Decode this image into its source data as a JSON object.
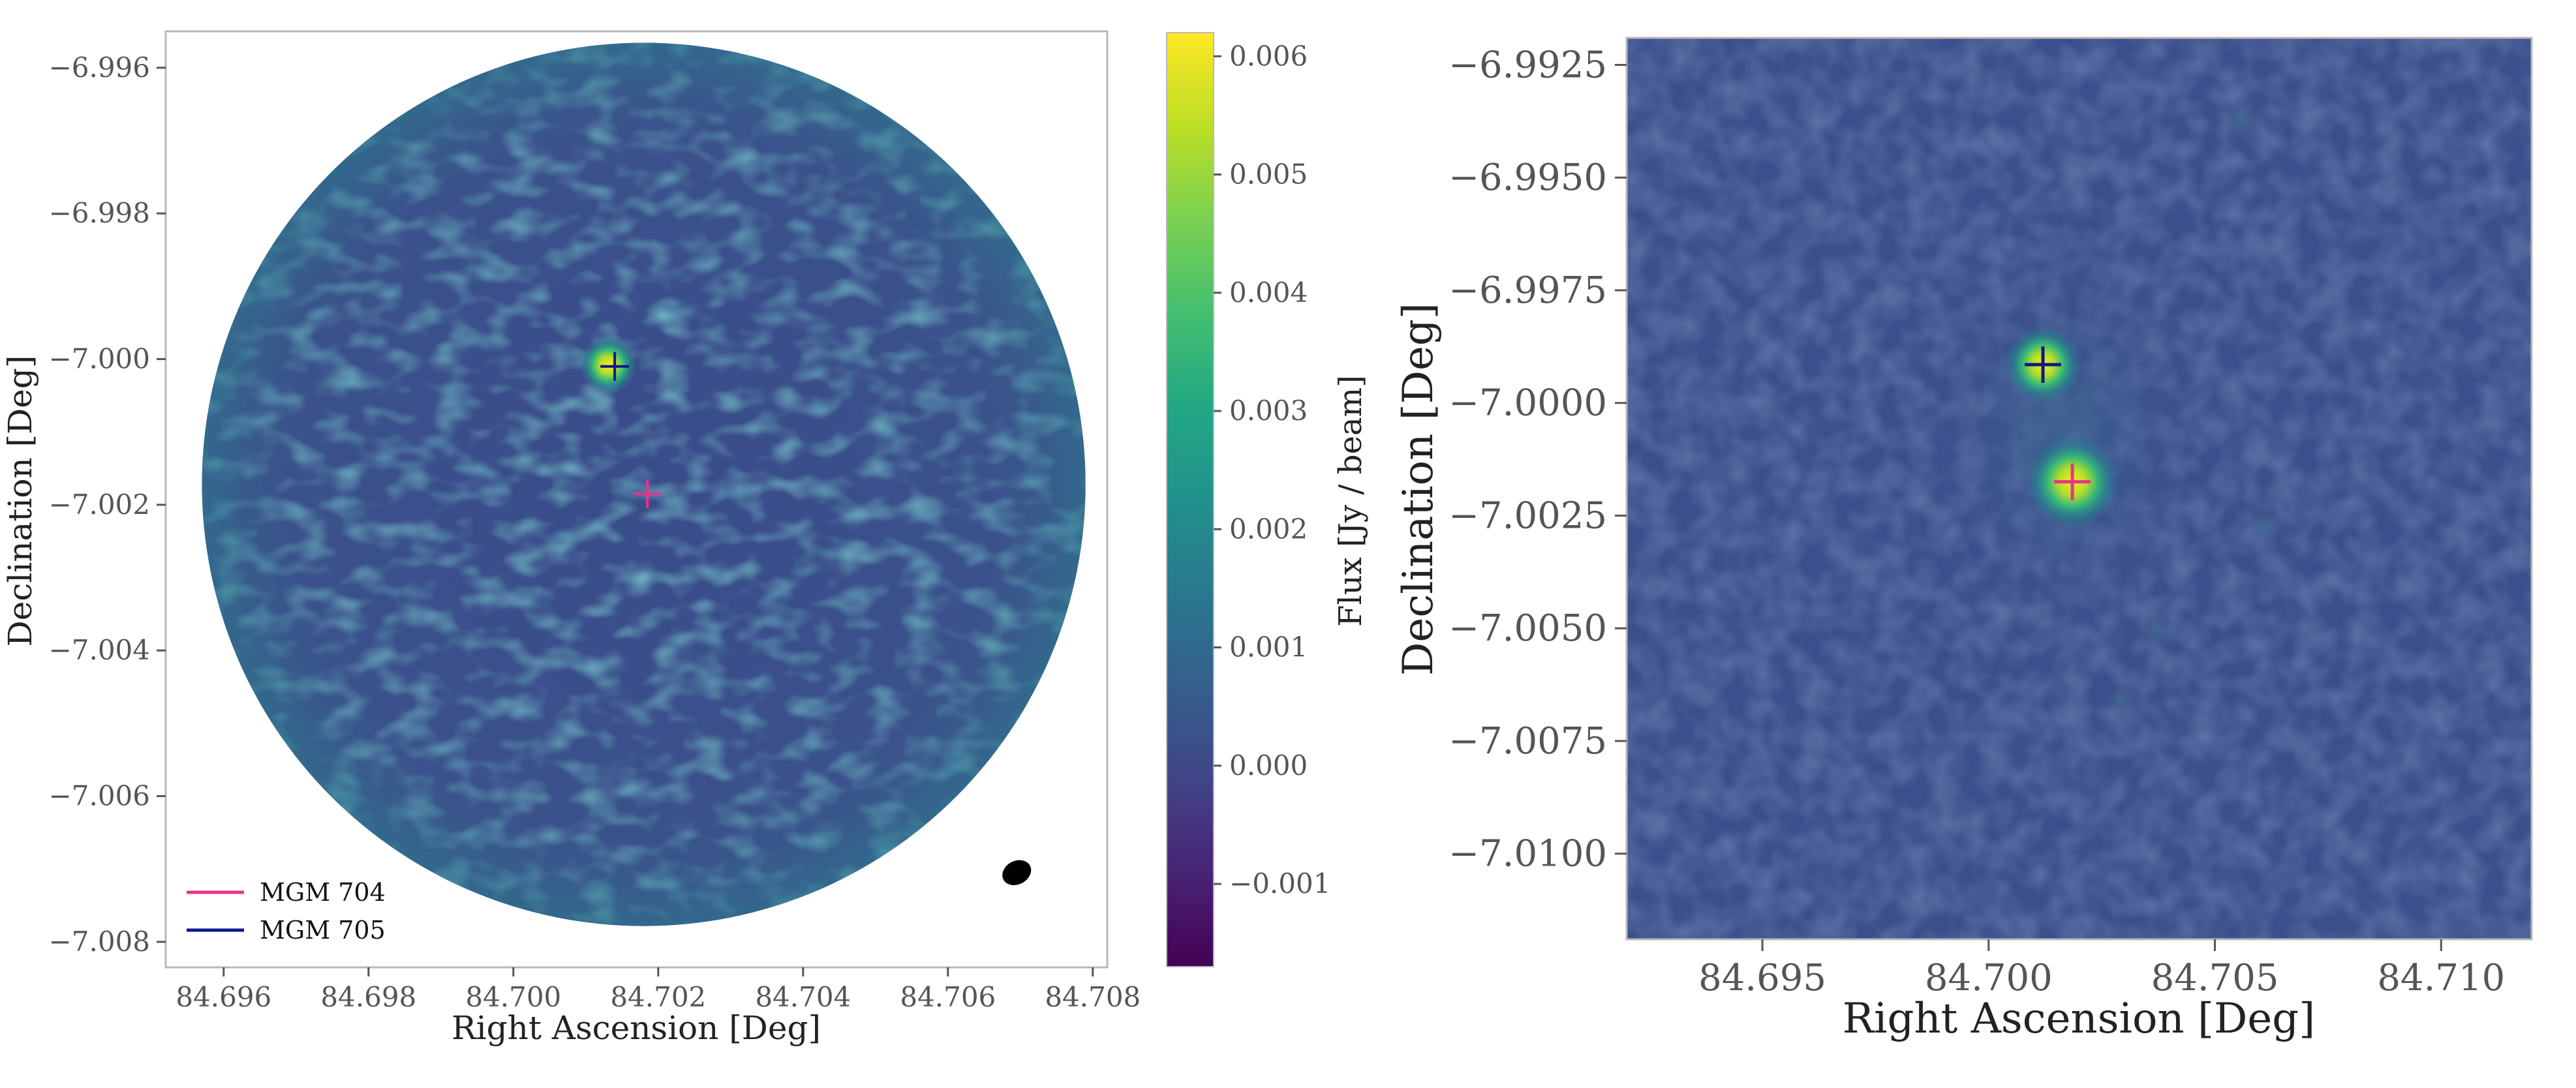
{
  "chart_data": [
    {
      "type": "heatmap",
      "xlabel": "Right Ascension [Deg]",
      "ylabel": "Declination [Deg]",
      "xlim": [
        84.6952,
        84.7082
      ],
      "ylim": [
        -7.00835,
        -6.9955
      ],
      "x_ticks": [
        84.696,
        84.698,
        84.7,
        84.702,
        84.704,
        84.706,
        84.708
      ],
      "x_tick_labels": [
        "84.696",
        "84.698",
        "84.700",
        "84.702",
        "84.704",
        "84.706",
        "84.708"
      ],
      "y_ticks": [
        -6.996,
        -6.998,
        -7.0,
        -7.002,
        -7.004,
        -7.006,
        -7.008
      ],
      "y_tick_labels": [
        "−6.996",
        "−6.998",
        "−7.000",
        "−7.002",
        "−7.004",
        "−7.006",
        "−7.008"
      ],
      "grid": false,
      "colormap": "viridis",
      "colorbar": {
        "label": "Flux [Jy / beam]",
        "range": [
          -0.0017,
          0.0062
        ],
        "ticks": [
          -0.001,
          0.0,
          0.001,
          0.002,
          0.003,
          0.004,
          0.005,
          0.006
        ],
        "tick_labels": [
          "−0.001",
          "0.000",
          "0.001",
          "0.002",
          "0.003",
          "0.004",
          "0.005",
          "0.006"
        ]
      },
      "field": {
        "center_ra": 84.7018,
        "center_dec": -7.00172,
        "radius_deg": 0.0061
      },
      "sources": [
        {
          "name": "MGM 704",
          "ra": 84.70185,
          "dec": -7.00185,
          "color": "#e8338c",
          "peak_flux": 0.0
        },
        {
          "name": "MGM 705",
          "ra": 84.7014,
          "dec": -7.0001,
          "color": "#0b1a8a",
          "peak_flux": 0.0062
        }
      ],
      "beam": {
        "ra": 84.70695,
        "dec": -7.00705
      },
      "legend_position": "lower-left"
    },
    {
      "type": "heatmap",
      "xlabel": "Right Ascension [Deg]",
      "ylabel": "Declination [Deg]",
      "xlim": [
        84.692,
        84.712
      ],
      "ylim": [
        -7.0119,
        -6.9919
      ],
      "x_ticks": [
        84.695,
        84.7,
        84.705,
        84.71
      ],
      "x_tick_labels": [
        "84.695",
        "84.700",
        "84.705",
        "84.710"
      ],
      "y_ticks": [
        -6.9925,
        -6.995,
        -6.9975,
        -7.0,
        -7.0025,
        -7.005,
        -7.0075,
        -7.01
      ],
      "y_tick_labels": [
        "−6.9925",
        "−6.9950",
        "−6.9975",
        "−7.0000",
        "−7.0025",
        "−7.0050",
        "−7.0075",
        "−7.0100"
      ],
      "grid": false,
      "colormap": "viridis",
      "sources": [
        {
          "name": "MGM 705",
          "ra": 84.7012,
          "dec": -6.99915,
          "color": "#0b1a8a"
        },
        {
          "name": "MGM 704",
          "ra": 84.70185,
          "dec": -7.00175,
          "color": "#e8338c"
        }
      ],
      "features": [
        {
          "ra": 84.7056,
          "dec": -6.9937
        },
        {
          "ra": 84.7061,
          "dec": -7.0027
        },
        {
          "ra": 84.7037,
          "dec": -7.005
        },
        {
          "ra": 84.7029,
          "dec": -7.0066
        }
      ]
    }
  ]
}
